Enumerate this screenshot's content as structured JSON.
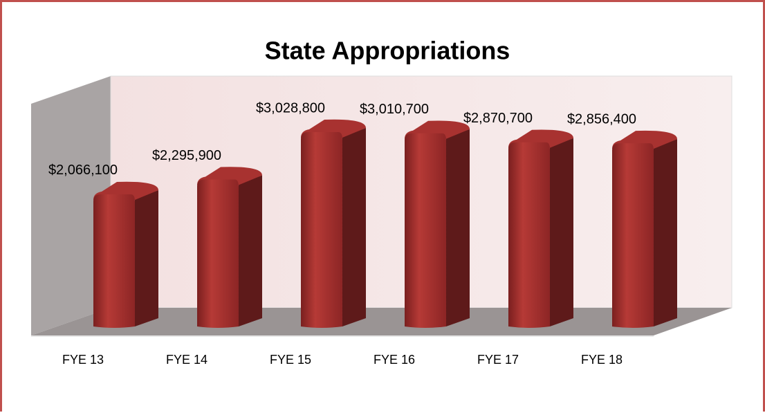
{
  "chart_data": {
    "type": "bar3d",
    "title": "State Appropriations",
    "categories": [
      "FYE 13",
      "FYE 14",
      "FYE 15",
      "FYE 16",
      "FYE 17",
      "FYE 18"
    ],
    "values": [
      2066100,
      2295900,
      3028800,
      3010700,
      2870700,
      2856400
    ],
    "value_labels": [
      "$2,066,100",
      "$2,295,900",
      "$3,028,800",
      "$3,010,700",
      "$2,870,700",
      "$2,856,400"
    ],
    "color": "#9e2a2a",
    "ylim": [
      0,
      3500000
    ]
  }
}
